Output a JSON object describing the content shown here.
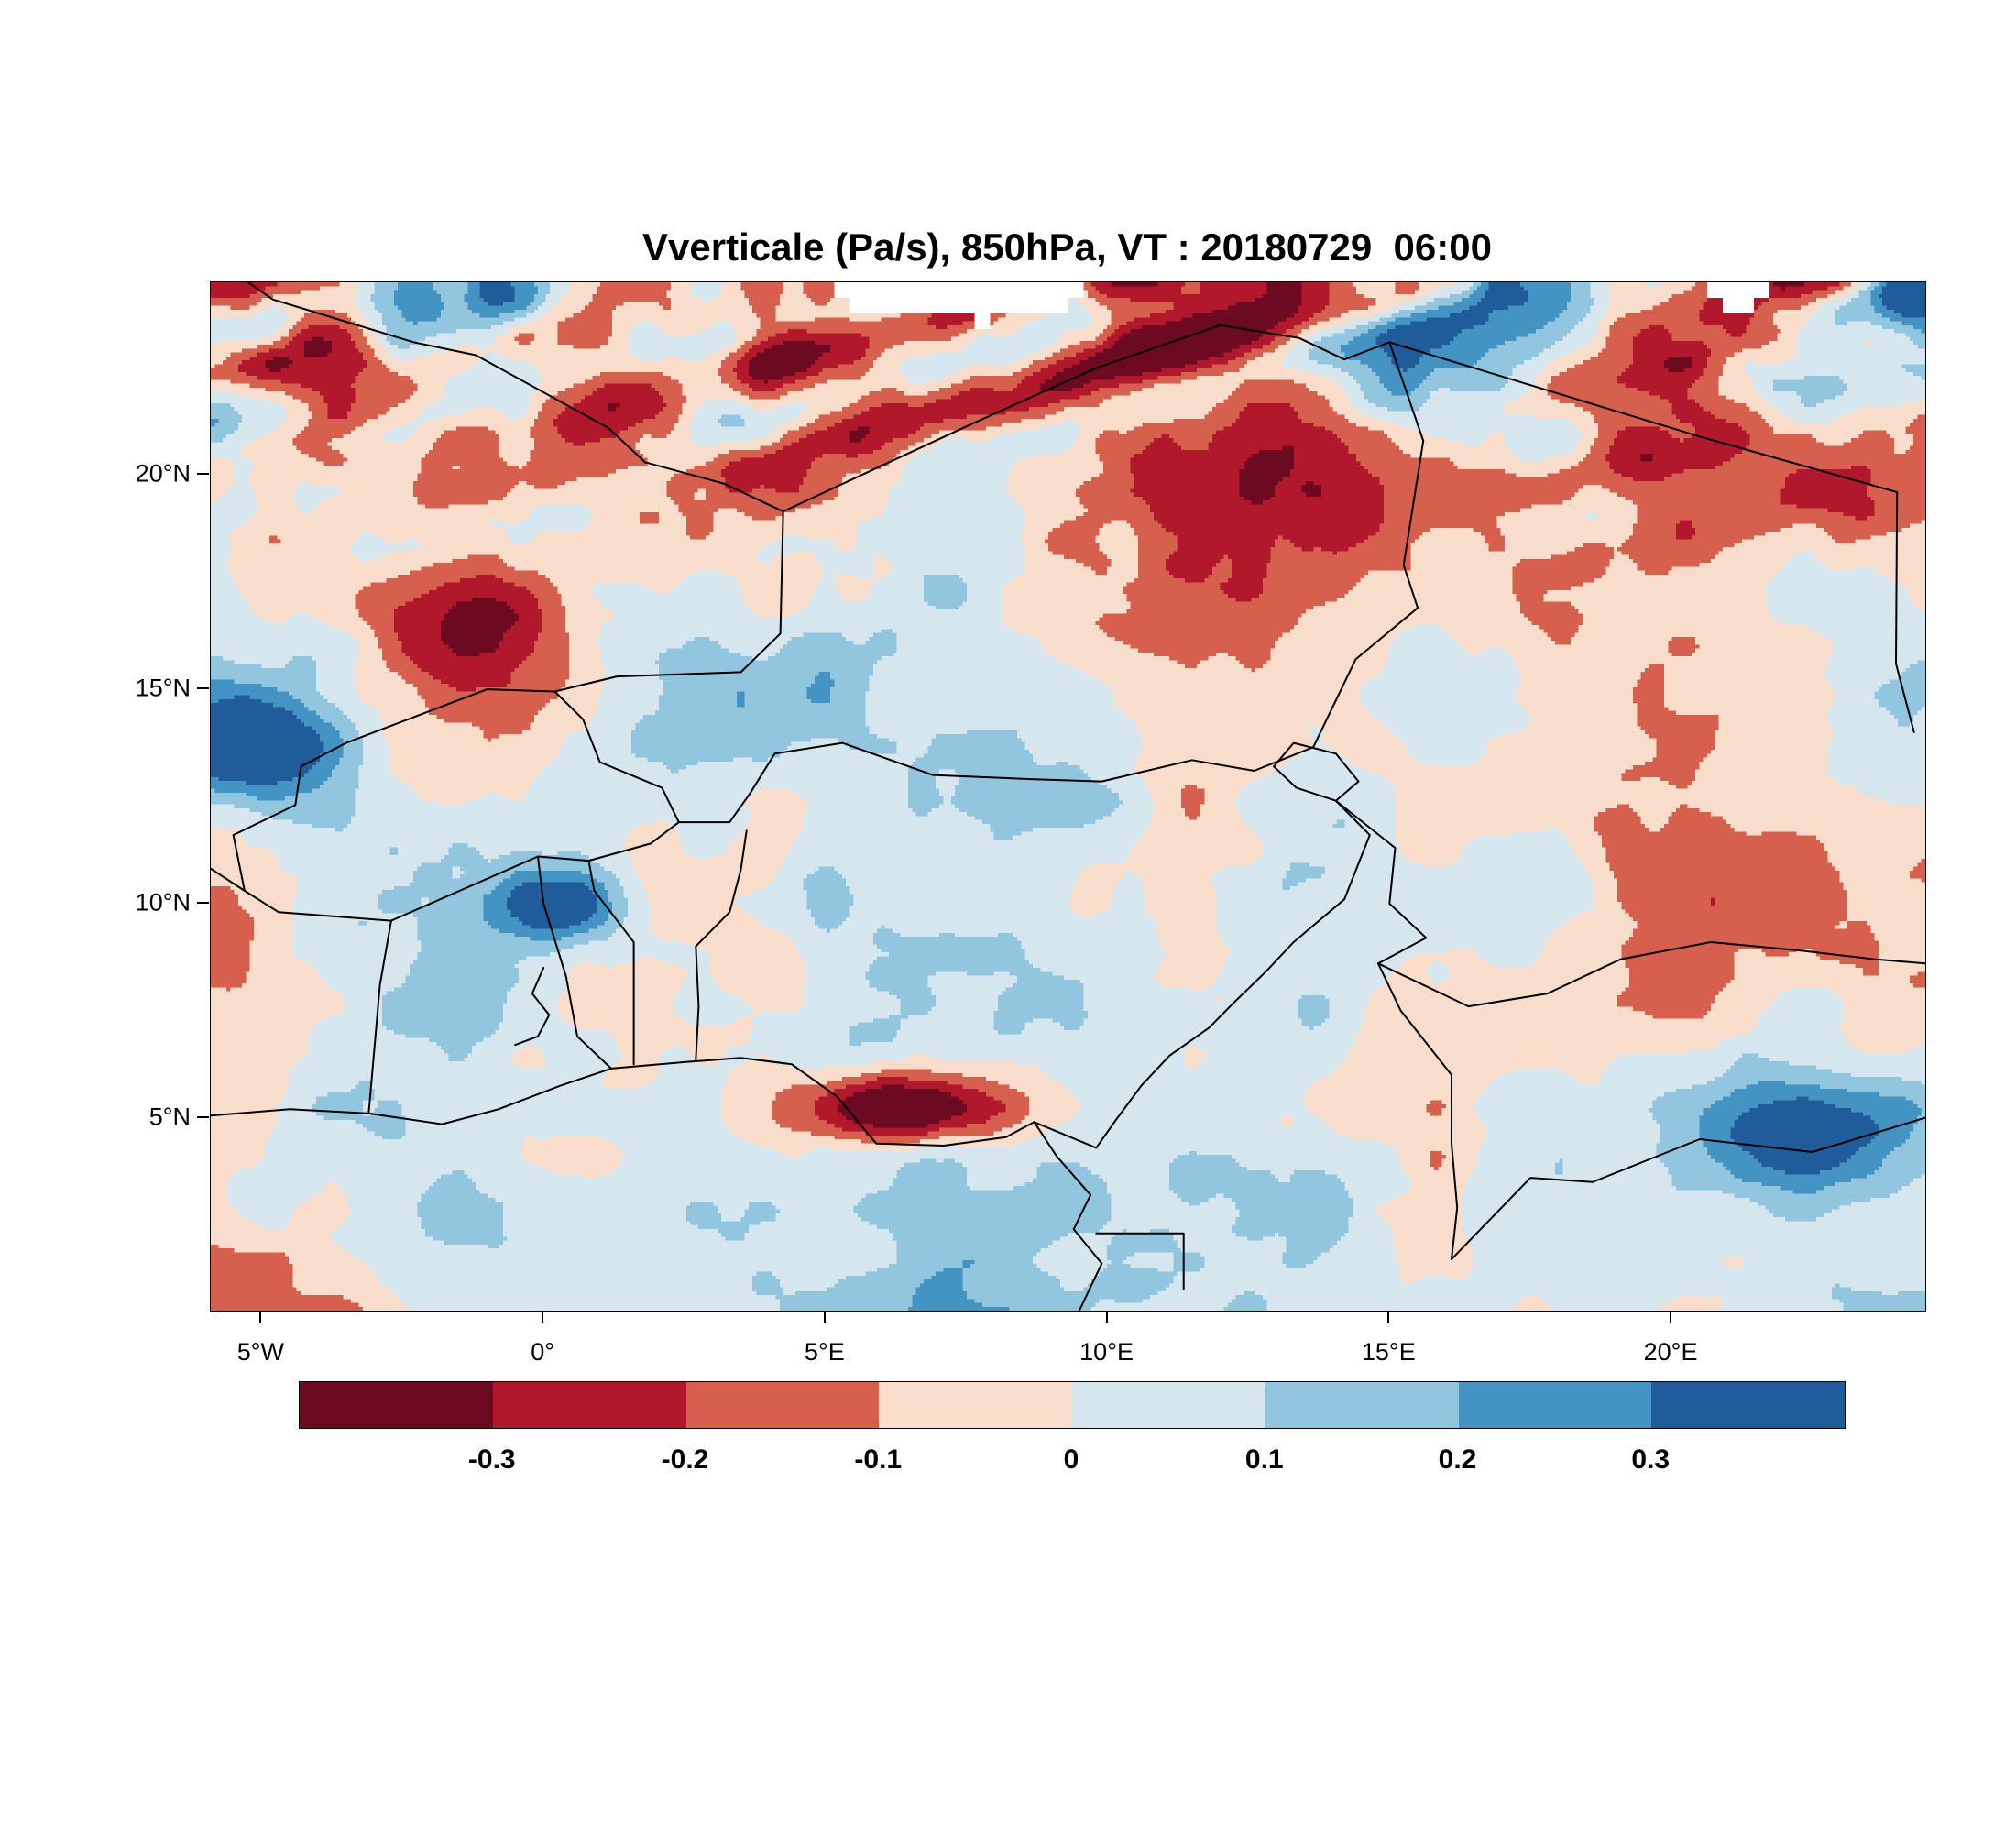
{
  "title": "Vverticale (Pa/s), 850hPa, VT : 20180729  06:00",
  "chart_data": {
    "type": "heatmap",
    "title": "Vverticale (Pa/s), 850hPa, VT : 20180729  06:00",
    "variable": "Vverticale",
    "units": "Pa/s",
    "level": "850hPa",
    "valid_time_label": "VT : 20180729  06:00",
    "grid": false,
    "legend_position": "bottom",
    "extent": {
      "lon_min": -5.9,
      "lon_max": 24.5,
      "lat_min": 0.5,
      "lat_max": 24.5
    },
    "x_ticks": [
      {
        "value": -5,
        "label": "5°W"
      },
      {
        "value": 0,
        "label": "0°"
      },
      {
        "value": 5,
        "label": "5°E"
      },
      {
        "value": 10,
        "label": "10°E"
      },
      {
        "value": 15,
        "label": "15°E"
      },
      {
        "value": 20,
        "label": "20°E"
      }
    ],
    "y_ticks": [
      {
        "value": 5,
        "label": "5°N"
      },
      {
        "value": 10,
        "label": "10°N"
      },
      {
        "value": 15,
        "label": "15°N"
      },
      {
        "value": 20,
        "label": "20°N"
      }
    ],
    "colorbar": {
      "levels": [
        -0.3,
        -0.2,
        -0.1,
        0,
        0.1,
        0.2,
        0.3
      ],
      "tick_labels": [
        "-0.3",
        "-0.2",
        "-0.1",
        "0",
        "0.1",
        "0.2",
        "0.3"
      ],
      "colors": [
        "#6b0a20",
        "#b2182b",
        "#d6604d",
        "#f7ddca",
        "#d6e6ef",
        "#92c5de",
        "#4393c3",
        "#1f5c99"
      ],
      "missing_color": "#ffffff"
    },
    "field_description": "Filled-contour map of vertical velocity (Pa/s) at 850 hPa over West and Central Africa; strong descending (dark red) streaks over the Sahara in the northwest, mottled weak ascent/descent (pale blue/pink) over the Sahel and Gulf of Guinea, intense dark red band along the Nigerian coast, scattered strong blue ascent cells, and white blocky missing-data patches in the north"
  },
  "map": {
    "borders": [
      {
        "name": "gulf-of-guinea-coastline",
        "points": [
          [
            -5.9,
            5.05
          ],
          [
            -4.5,
            5.2
          ],
          [
            -3.1,
            5.1
          ],
          [
            -1.8,
            4.85
          ],
          [
            -0.8,
            5.2
          ],
          [
            0.3,
            5.75
          ],
          [
            1.2,
            6.15
          ],
          [
            2.5,
            6.3
          ],
          [
            3.5,
            6.4
          ],
          [
            4.4,
            6.25
          ],
          [
            5.2,
            5.5
          ],
          [
            5.9,
            4.4
          ],
          [
            7.1,
            4.35
          ],
          [
            8.2,
            4.55
          ],
          [
            8.7,
            4.9
          ],
          [
            9.1,
            4.1
          ],
          [
            9.7,
            3.2
          ],
          [
            9.4,
            2.4
          ],
          [
            9.9,
            1.6
          ],
          [
            9.5,
            0.5
          ]
        ]
      },
      {
        "name": "cote-divoire-ghana",
        "points": [
          [
            -3.1,
            5.1
          ],
          [
            -3.0,
            6.6
          ],
          [
            -2.9,
            8.1
          ],
          [
            -2.7,
            9.6
          ]
        ]
      },
      {
        "name": "ghana-togo",
        "points": [
          [
            1.2,
            6.15
          ],
          [
            0.6,
            6.9
          ],
          [
            0.4,
            8.3
          ],
          [
            0.0,
            10.0
          ],
          [
            -0.1,
            11.1
          ]
        ]
      },
      {
        "name": "togo-benin",
        "points": [
          [
            1.6,
            6.25
          ],
          [
            1.6,
            7.6
          ],
          [
            1.6,
            9.1
          ],
          [
            0.9,
            10.3
          ],
          [
            0.8,
            11.0
          ]
        ]
      },
      {
        "name": "benin-nigeria",
        "points": [
          [
            2.7,
            6.35
          ],
          [
            2.75,
            7.6
          ],
          [
            2.7,
            9.0
          ],
          [
            3.3,
            9.8
          ],
          [
            3.5,
            10.8
          ],
          [
            3.6,
            11.7
          ]
        ]
      },
      {
        "name": "burkina-south",
        "points": [
          [
            -5.3,
            10.3
          ],
          [
            -4.7,
            9.8
          ],
          [
            -2.7,
            9.6
          ],
          [
            -0.1,
            11.1
          ],
          [
            0.8,
            11.0
          ],
          [
            1.9,
            11.4
          ],
          [
            2.4,
            11.9
          ]
        ]
      },
      {
        "name": "cote-divoire-mali",
        "points": [
          [
            -6.0,
            10.9
          ],
          [
            -5.3,
            10.3
          ]
        ]
      },
      {
        "name": "mali-burkina",
        "points": [
          [
            -5.3,
            10.3
          ],
          [
            -5.5,
            11.6
          ],
          [
            -4.4,
            12.3
          ],
          [
            -4.3,
            13.2
          ],
          [
            -3.5,
            13.75
          ],
          [
            -2.4,
            14.3
          ],
          [
            -1.0,
            15.0
          ],
          [
            0.2,
            14.95
          ]
        ]
      },
      {
        "name": "burkina-niger",
        "points": [
          [
            0.2,
            14.95
          ],
          [
            0.7,
            14.3
          ],
          [
            1.0,
            13.3
          ],
          [
            2.1,
            12.7
          ],
          [
            2.4,
            11.9
          ]
        ]
      },
      {
        "name": "mali-niger",
        "points": [
          [
            0.2,
            14.95
          ],
          [
            1.3,
            15.3
          ],
          [
            3.5,
            15.4
          ],
          [
            4.2,
            16.3
          ],
          [
            4.25,
            19.15
          ]
        ]
      },
      {
        "name": "algeria-mali",
        "points": [
          [
            -6.0,
            25.2
          ],
          [
            -4.8,
            24.1
          ],
          [
            -2.3,
            23.1
          ],
          [
            -1.2,
            22.8
          ],
          [
            1.15,
            21.1
          ],
          [
            1.8,
            20.3
          ],
          [
            3.2,
            19.8
          ],
          [
            4.25,
            19.15
          ]
        ]
      },
      {
        "name": "algeria-niger",
        "points": [
          [
            4.25,
            19.15
          ],
          [
            5.8,
            20.1
          ],
          [
            7.6,
            21.2
          ],
          [
            9.8,
            22.5
          ],
          [
            12.0,
            23.5
          ]
        ]
      },
      {
        "name": "niger-libya",
        "points": [
          [
            12.0,
            23.5
          ],
          [
            13.4,
            23.2
          ],
          [
            14.2,
            22.7
          ],
          [
            15.0,
            23.1
          ]
        ]
      },
      {
        "name": "chad-libya",
        "points": [
          [
            15.0,
            23.1
          ],
          [
            17.5,
            22.1
          ],
          [
            20.5,
            20.9
          ],
          [
            24.0,
            19.6
          ]
        ]
      },
      {
        "name": "chad-sudan",
        "points": [
          [
            24.0,
            19.6
          ],
          [
            23.98,
            15.6
          ],
          [
            24.3,
            14.0
          ]
        ]
      },
      {
        "name": "niger-chad",
        "points": [
          [
            15.0,
            23.1
          ],
          [
            15.6,
            20.8
          ],
          [
            15.25,
            17.9
          ],
          [
            15.5,
            16.9
          ],
          [
            14.4,
            15.7
          ],
          [
            13.65,
            13.65
          ]
        ]
      },
      {
        "name": "niger-nigeria",
        "points": [
          [
            2.4,
            11.9
          ],
          [
            3.3,
            11.9
          ],
          [
            3.65,
            12.55
          ],
          [
            4.1,
            13.5
          ],
          [
            5.3,
            13.75
          ],
          [
            6.9,
            13.0
          ],
          [
            8.7,
            12.9
          ],
          [
            9.9,
            12.85
          ],
          [
            11.5,
            13.35
          ],
          [
            12.6,
            13.1
          ],
          [
            13.65,
            13.65
          ]
        ]
      },
      {
        "name": "lake-chad",
        "points": [
          [
            12.95,
            13.2
          ],
          [
            13.3,
            13.75
          ],
          [
            14.05,
            13.5
          ],
          [
            14.45,
            12.85
          ],
          [
            14.05,
            12.4
          ],
          [
            13.35,
            12.7
          ],
          [
            12.95,
            13.2
          ]
        ]
      },
      {
        "name": "nigeria-cameroon",
        "points": [
          [
            14.05,
            12.4
          ],
          [
            14.65,
            11.6
          ],
          [
            14.2,
            10.1
          ],
          [
            13.3,
            9.1
          ],
          [
            12.8,
            8.4
          ],
          [
            12.25,
            7.7
          ],
          [
            11.8,
            7.1
          ],
          [
            11.1,
            6.45
          ],
          [
            10.6,
            5.75
          ],
          [
            10.15,
            4.95
          ],
          [
            9.8,
            4.3
          ],
          [
            8.7,
            4.9
          ]
        ]
      },
      {
        "name": "chad-cameroon",
        "points": [
          [
            14.05,
            12.4
          ],
          [
            15.1,
            11.3
          ],
          [
            15.0,
            10.0
          ],
          [
            15.65,
            9.2
          ],
          [
            14.8,
            8.6
          ]
        ]
      },
      {
        "name": "chad-car",
        "points": [
          [
            14.8,
            8.6
          ],
          [
            16.4,
            7.6
          ],
          [
            17.8,
            7.9
          ],
          [
            19.1,
            8.7
          ],
          [
            20.7,
            9.1
          ],
          [
            22.3,
            8.9
          ],
          [
            23.6,
            8.7
          ],
          [
            24.5,
            8.6
          ]
        ]
      },
      {
        "name": "cameroon-car",
        "points": [
          [
            14.8,
            8.6
          ],
          [
            15.2,
            7.5
          ],
          [
            16.1,
            6.0
          ],
          [
            16.1,
            4.4
          ],
          [
            16.2,
            2.9
          ],
          [
            16.1,
            1.7
          ]
        ]
      },
      {
        "name": "car-south",
        "points": [
          [
            16.1,
            1.7
          ],
          [
            17.5,
            3.6
          ],
          [
            18.6,
            3.5
          ],
          [
            20.5,
            4.5
          ],
          [
            22.5,
            4.2
          ],
          [
            24.5,
            5.0
          ]
        ]
      },
      {
        "name": "equatorial-guinea",
        "points": [
          [
            9.8,
            2.3
          ],
          [
            11.35,
            2.3
          ],
          [
            11.35,
            1.0
          ]
        ]
      },
      {
        "name": "lake-volta",
        "points": [
          [
            -0.5,
            6.7
          ],
          [
            -0.1,
            6.9
          ],
          [
            0.1,
            7.4
          ],
          [
            -0.2,
            7.9
          ],
          [
            0.0,
            8.5
          ]
        ]
      }
    ]
  }
}
